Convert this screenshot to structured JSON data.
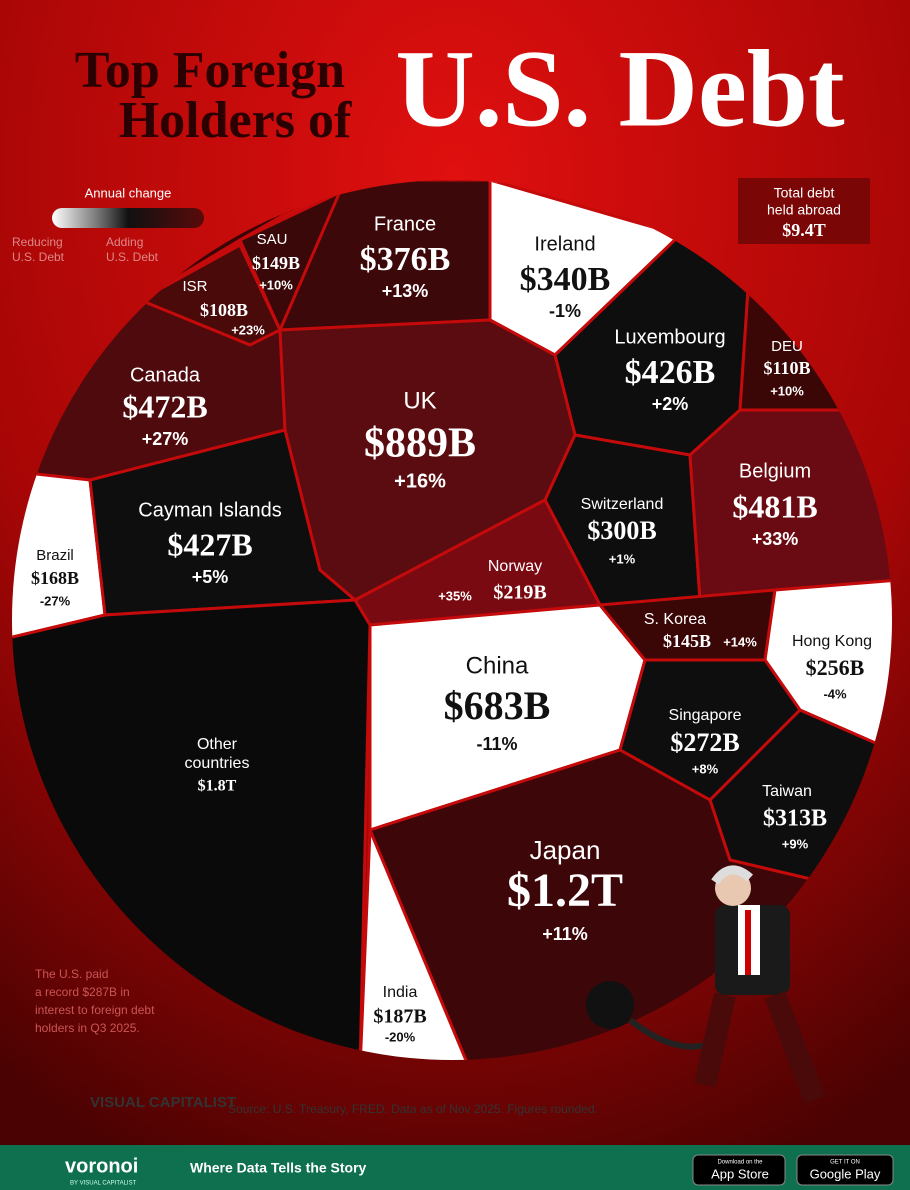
{
  "header": {
    "title_lines": [
      "Top Foreign",
      "Holders of"
    ],
    "title_big": "U.S. Debt"
  },
  "legend": {
    "title": "Annual change",
    "left": [
      "Reducing",
      "U.S. Debt"
    ],
    "right": [
      "Adding",
      "U.S. Debt"
    ]
  },
  "total": {
    "label": [
      "Total debt",
      "held abroad"
    ],
    "value": "$9.4T"
  },
  "cells": [
    {
      "name": "France",
      "value": "$376B",
      "change": "+13%"
    },
    {
      "name": "Ireland",
      "value": "$340B",
      "change": "-1%"
    },
    {
      "name": "Luxembourg",
      "value": "$426B",
      "change": "+2%"
    },
    {
      "name": "DEU",
      "value": "$110B",
      "change": "+10%"
    },
    {
      "name": "SAU",
      "value": "$149B",
      "change": "+10%"
    },
    {
      "name": "ISR",
      "value": "$108B",
      "change": "+23%"
    },
    {
      "name": "Canada",
      "value": "$472B",
      "change": "+27%"
    },
    {
      "name": "UK",
      "value": "$889B",
      "change": "+16%"
    },
    {
      "name": "Cayman Islands",
      "value": "$427B",
      "change": "+5%"
    },
    {
      "name": "Brazil",
      "value": "$168B",
      "change": "-27%"
    },
    {
      "name": "Norway",
      "value": "$219B",
      "change": "+35%"
    },
    {
      "name": "Switzerland",
      "value": "$300B",
      "change": "+1%"
    },
    {
      "name": "Belgium",
      "value": "$481B",
      "change": "+33%"
    },
    {
      "name": "China",
      "value": "$683B",
      "change": "-11%"
    },
    {
      "name": "S. Korea",
      "value": "$145B",
      "change": "+14%"
    },
    {
      "name": "Hong Kong",
      "value": "$256B",
      "change": "-4%"
    },
    {
      "name": "Singapore",
      "value": "$272B",
      "change": "+8%"
    },
    {
      "name": "Taiwan",
      "value": "$313B",
      "change": "+9%"
    },
    {
      "name": "Japan",
      "value": "$1.2T",
      "change": "+11%"
    },
    {
      "name": "India",
      "value": "$187B",
      "change": "-20%"
    },
    {
      "name": "Other countries",
      "value": "$1.8T"
    }
  ],
  "note": [
    "The U.S. paid",
    "a record $287B in",
    "interest to foreign debt",
    "holders in Q3 2025."
  ],
  "brand": "VISUAL CAPITALIST",
  "source": "Source: U.S. Treasury, FRED. Data as of Nov 2025. Figures rounded.",
  "footer": {
    "logo": "voronoi",
    "logo_sub": "BY VISUAL CAPITALIST",
    "tagline": "Where Data Tells the Story",
    "app_store": [
      "Download on the",
      "App Store"
    ],
    "google_play": [
      "GET IT ON",
      "Google Play"
    ]
  }
}
